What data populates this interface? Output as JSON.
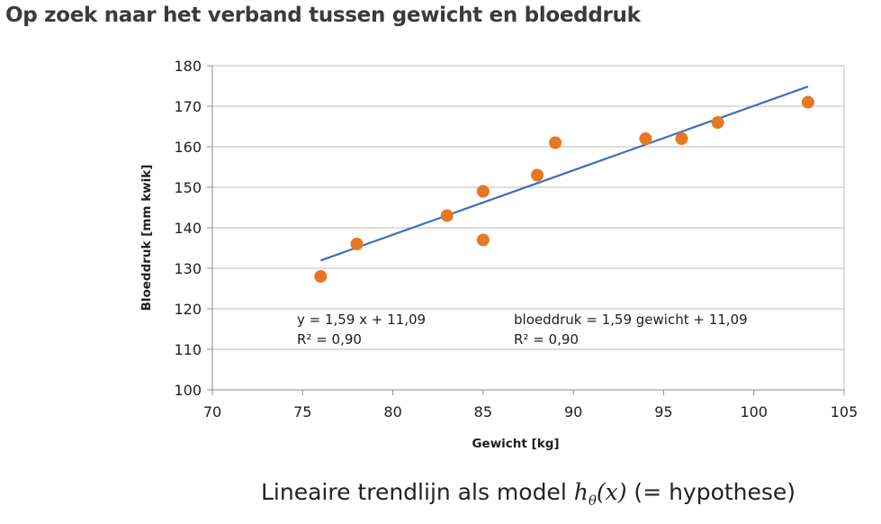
{
  "page": {
    "title": "Op zoek naar het verband tussen gewicht en bloeddruk",
    "caption_text": "Lineaire trendlijn als model",
    "caption_model_h": "h",
    "caption_model_sub": "θ",
    "caption_model_arg": "(x)",
    "caption_suffix": "(= hypothese)"
  },
  "chart_data": {
    "type": "scatter",
    "xlabel": "Gewicht [kg]",
    "ylabel": "Bloeddruk [mm kwik]",
    "xlim": [
      70,
      105
    ],
    "ylim": [
      100,
      180
    ],
    "x_ticks": [
      70,
      75,
      80,
      85,
      90,
      95,
      100,
      105
    ],
    "y_ticks": [
      100,
      110,
      120,
      130,
      140,
      150,
      160,
      170,
      180
    ],
    "grid": "horizontal",
    "series": [
      {
        "x": [
          76,
          78,
          83,
          85,
          85,
          88,
          89,
          94,
          96,
          98,
          103
        ],
        "y": [
          128,
          136,
          143,
          149,
          137,
          153,
          161,
          162,
          162,
          166,
          171
        ],
        "color": "#e87722"
      }
    ],
    "trendline": {
      "slope": 1.59,
      "intercept": 11.09,
      "x_range": [
        76,
        103
      ],
      "color": "#3a6fc0"
    },
    "annotations": {
      "equation_1": "y = 1,59 x + 11,09",
      "r2_1": "R² = 0,90",
      "equation_2": "bloeddruk = 1,59 gewicht + 11,09",
      "r2_2": "R² = 0,90"
    },
    "colors": {
      "grid": "#bdbdbd",
      "axis": "#8c8c8c"
    }
  }
}
